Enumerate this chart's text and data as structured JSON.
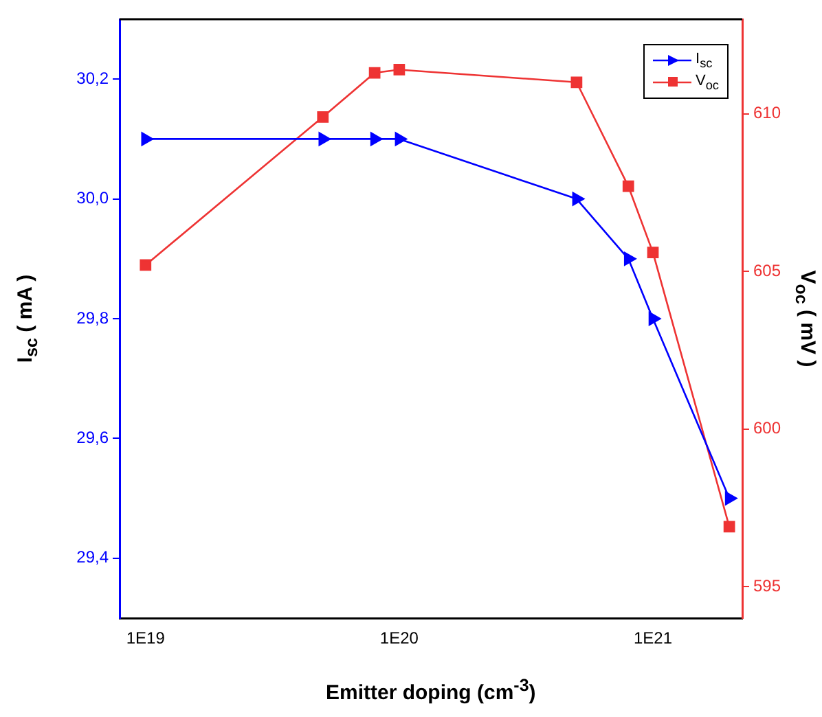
{
  "chart_data": {
    "type": "line",
    "xlabel": "Emitter doping (cm$^{-3}$)",
    "ylabel": "I$_{sc}$ ( mA )",
    "y2label": "V$_{oc}$ ( mV )",
    "log": "x",
    "xlim": [
      7.9e+18,
      2.25e+21
    ],
    "xticks": [
      {
        "value": 1e+19,
        "label": "1E19"
      },
      {
        "value": 1e+20,
        "label": "1E20"
      },
      {
        "value": 1e+21,
        "label": "1E21"
      }
    ],
    "ylim": [
      29.3,
      30.3
    ],
    "yticks": [
      {
        "value": 29.4,
        "label": "29,4"
      },
      {
        "value": 29.6,
        "label": "29,6"
      },
      {
        "value": 29.8,
        "label": "29,8"
      },
      {
        "value": 30.0,
        "label": "30,0"
      },
      {
        "value": 30.2,
        "label": "30,2"
      }
    ],
    "y2lim": [
      594,
      613
    ],
    "y2ticks": [
      595,
      600,
      605,
      610
    ],
    "x": [
      1e+19,
      5e+19,
      8e+19,
      1e+20,
      5e+20,
      8e+20,
      1e+21,
      2e+21
    ],
    "grid": false,
    "legend": "top right",
    "line_style": "solid",
    "series": [
      {
        "name": "I$_{sc}$",
        "color": "#0000ff",
        "marker": "triangle",
        "values": [
          30.1,
          30.1,
          30.1,
          30.1,
          30.0,
          29.9,
          29.8,
          29.5
        ]
      },
      {
        "name": "V$_{oc}$",
        "color": "#ee3333",
        "marker": "square",
        "axis": "y2",
        "values": [
          605.2,
          609.9,
          611.3,
          611.4,
          611.0,
          607.7,
          605.6,
          596.9
        ]
      }
    ]
  }
}
